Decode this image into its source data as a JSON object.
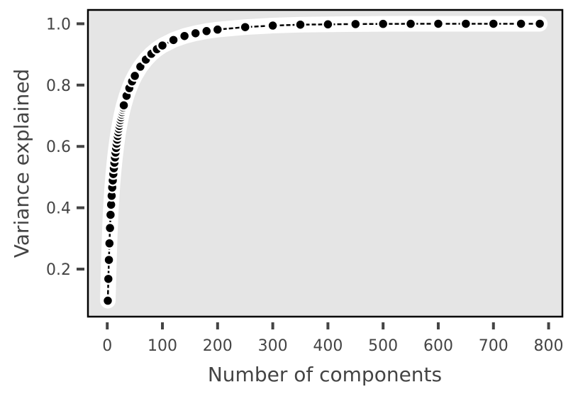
{
  "chart_data": {
    "type": "line",
    "title": "",
    "xlabel": "Number of components",
    "ylabel": "Variance explained",
    "xlim": [
      -35,
      825
    ],
    "ylim": [
      0.045,
      1.045
    ],
    "xticks": [
      0,
      100,
      200,
      300,
      400,
      500,
      600,
      700,
      800
    ],
    "xtick_labels": [
      "0",
      "100",
      "200",
      "300",
      "400",
      "500",
      "600",
      "700",
      "800"
    ],
    "yticks": [
      0.2,
      0.4,
      0.6,
      0.8,
      1.0
    ],
    "ytick_labels": [
      "0.2",
      "0.4",
      "0.6",
      "0.8",
      "1.0"
    ],
    "grid": false,
    "background": "#e5e5e5",
    "marker_color": "#000000",
    "marker_edge": "#ffffff",
    "series": [
      {
        "x": [
          1,
          2,
          3,
          4,
          5,
          6,
          7,
          8,
          9,
          10,
          11,
          12,
          13,
          14,
          15,
          16,
          17,
          18,
          19,
          20,
          21,
          22,
          23,
          24,
          25,
          26,
          27,
          28,
          29,
          30,
          35,
          40,
          45,
          50,
          60,
          70,
          80,
          90,
          100,
          120,
          140,
          160,
          180,
          200,
          250,
          300,
          350,
          400,
          450,
          500,
          550,
          600,
          650,
          700,
          750,
          784
        ],
        "y": [
          0.097,
          0.168,
          0.23,
          0.284,
          0.334,
          0.377,
          0.41,
          0.439,
          0.466,
          0.489,
          0.51,
          0.529,
          0.547,
          0.564,
          0.58,
          0.595,
          0.609,
          0.622,
          0.634,
          0.646,
          0.657,
          0.667,
          0.677,
          0.686,
          0.695,
          0.704,
          0.712,
          0.72,
          0.727,
          0.734,
          0.765,
          0.79,
          0.812,
          0.83,
          0.86,
          0.883,
          0.902,
          0.917,
          0.929,
          0.947,
          0.96,
          0.969,
          0.976,
          0.981,
          0.989,
          0.994,
          0.997,
          0.998,
          0.999,
          0.9995,
          0.9998,
          1.0,
          1.0,
          1.0,
          1.0,
          1.0
        ]
      }
    ]
  }
}
